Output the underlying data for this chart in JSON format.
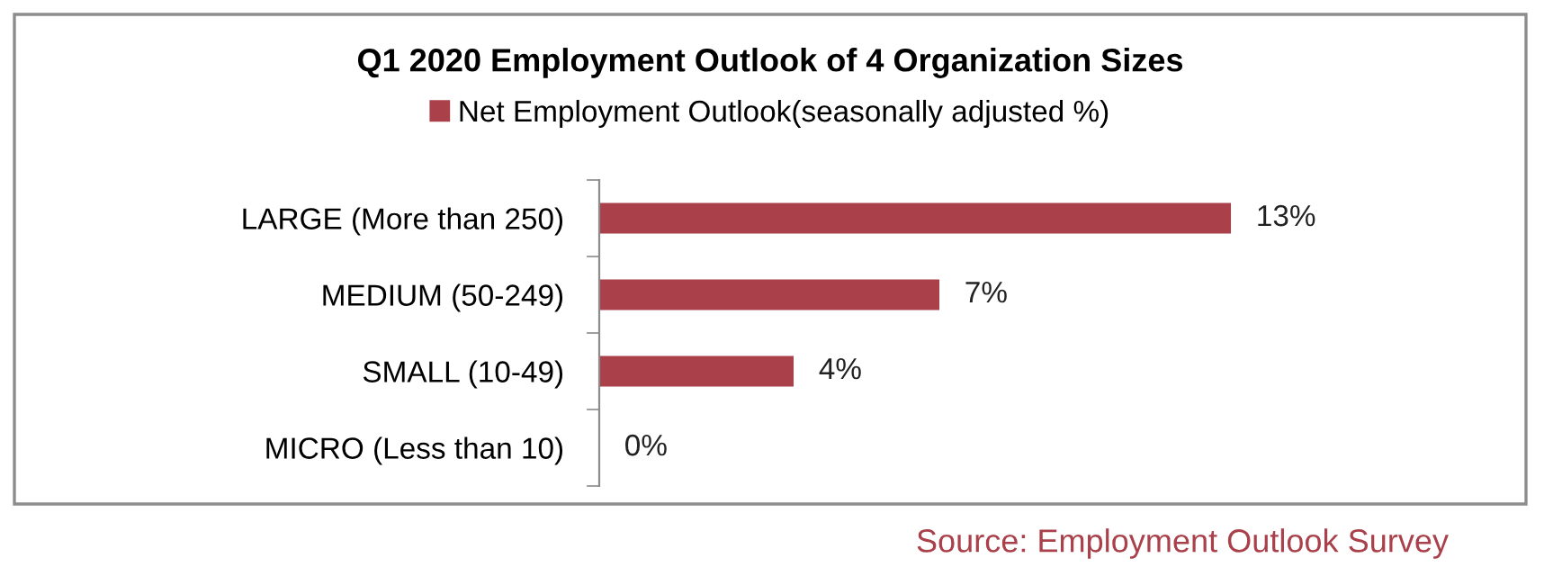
{
  "chart_data": {
    "type": "bar",
    "orientation": "horizontal",
    "title": "Q1 2020 Employment Outlook of 4 Organization Sizes",
    "categories": [
      "LARGE (More than 250)",
      "MEDIUM (50-249)",
      "SMALL (10-49)",
      "MICRO (Less than 10)"
    ],
    "series": [
      {
        "name": "Net Employment Outlook(seasonally adjusted %)",
        "color": "#a9404a",
        "values": [
          13,
          7,
          4,
          0
        ],
        "value_labels": [
          "13%",
          "7%",
          "4%",
          "0%"
        ]
      }
    ],
    "legend": "top",
    "grid": false,
    "tick_labels": "y",
    "annotations": [
      "Source: Employment Outlook Survey"
    ]
  }
}
